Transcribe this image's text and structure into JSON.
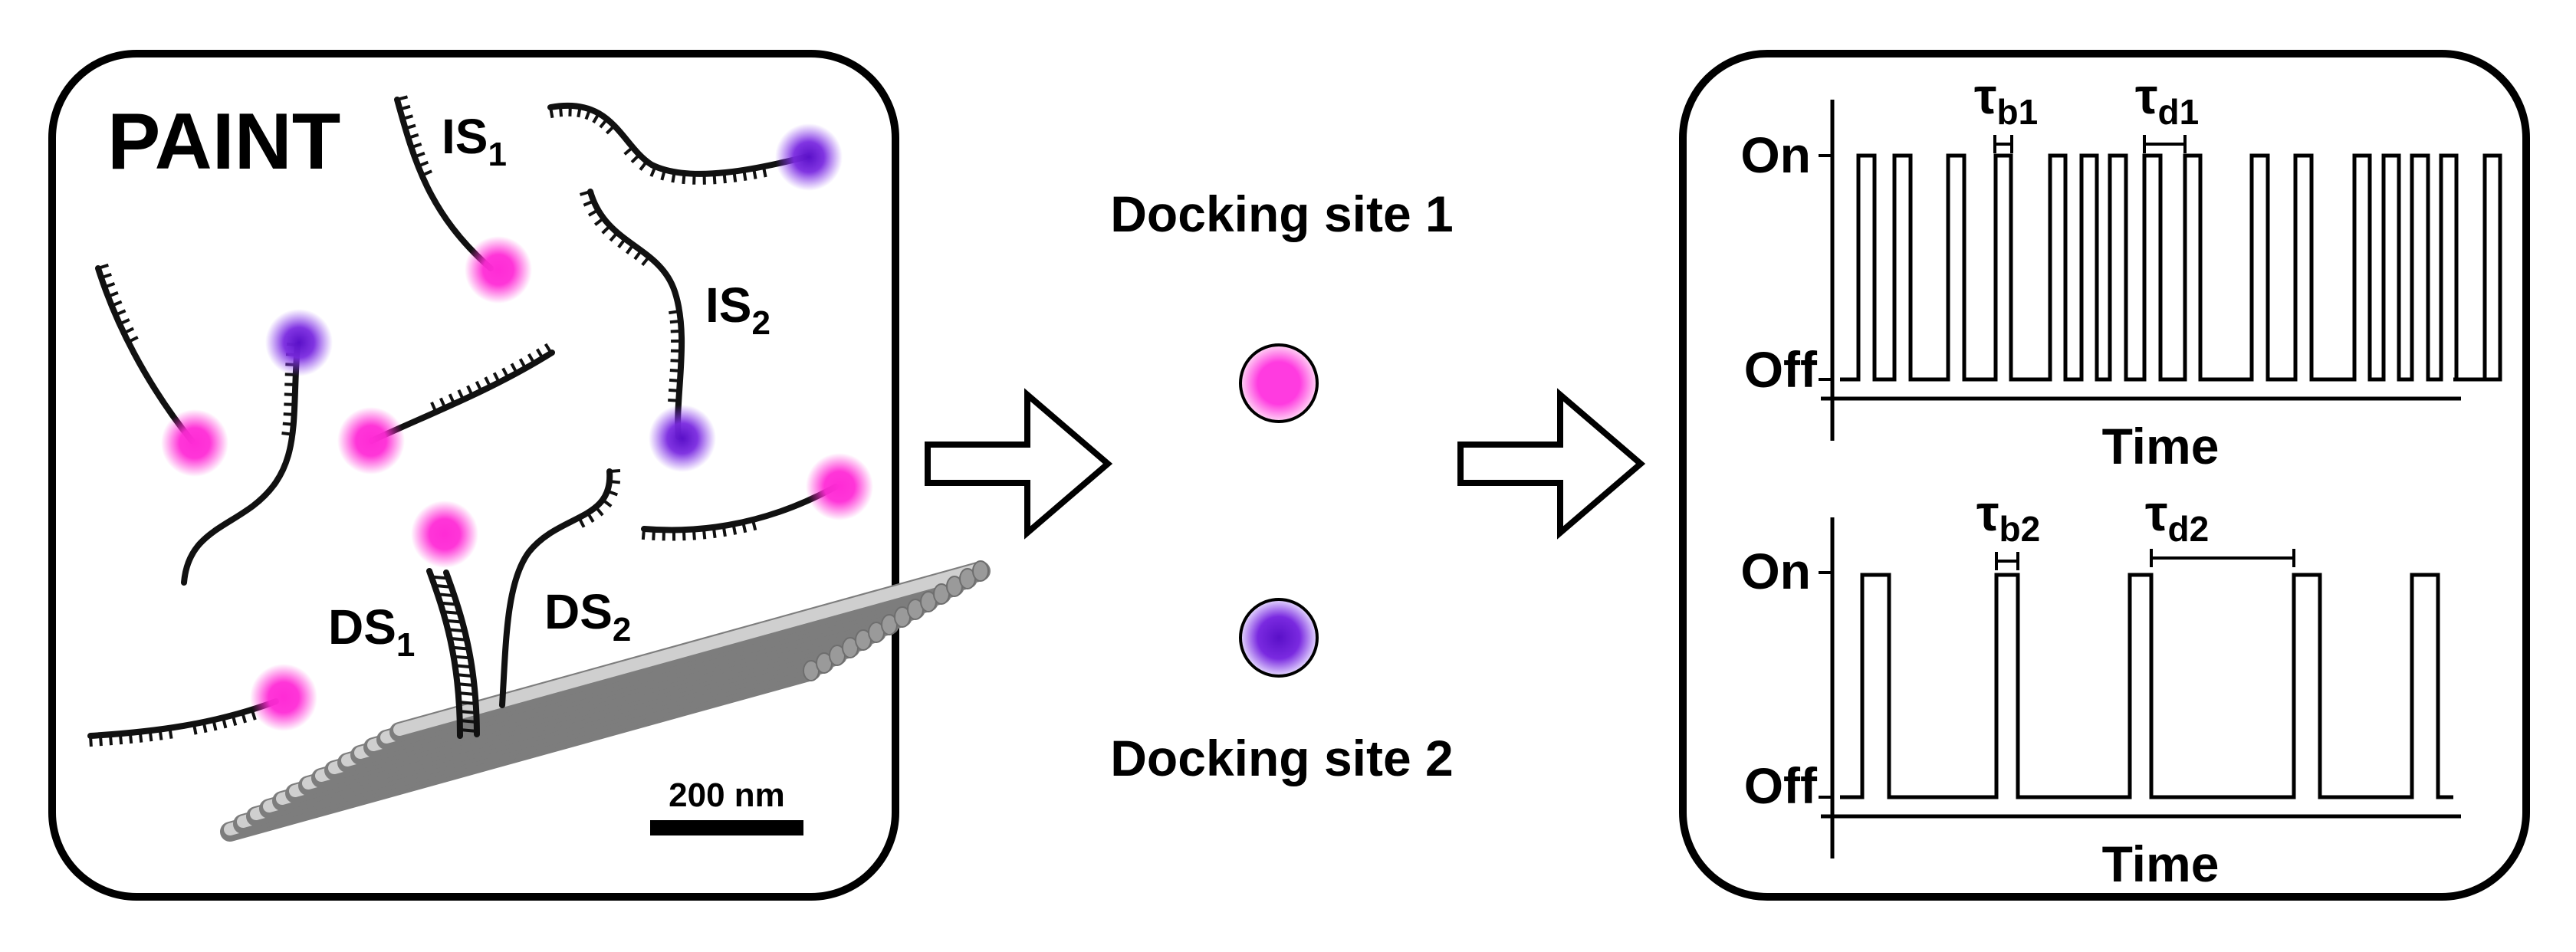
{
  "left_panel": {
    "title": "PAINT",
    "labels": {
      "is1": "IS",
      "is1_sub": "1",
      "is2": "IS",
      "is2_sub": "2",
      "ds1": "DS",
      "ds1_sub": "1",
      "ds2": "DS",
      "ds2_sub": "2"
    },
    "scale_bar": "200 nm"
  },
  "middle": {
    "site1": "Docking site 1",
    "site2": "Docking site 2"
  },
  "right_panel": {
    "trace1": {
      "on": "On",
      "off": "Off",
      "time": "Time",
      "tau_b": "τ",
      "tau_b_sub": "b1",
      "tau_d": "τ",
      "tau_d_sub": "d1"
    },
    "trace2": {
      "on": "On",
      "off": "Off",
      "time": "Time",
      "tau_b": "τ",
      "tau_b_sub": "b2",
      "tau_d": "τ",
      "tau_d_sub": "d2"
    }
  },
  "colors": {
    "magenta": "#ff2bd6",
    "violet": "#6a1bd8",
    "rod": "#b9b9b9"
  }
}
